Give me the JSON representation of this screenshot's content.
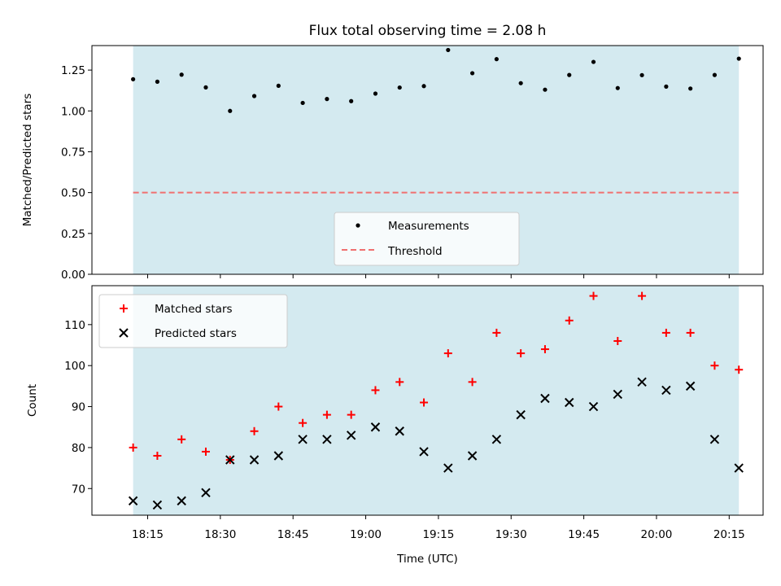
{
  "chart_data": [
    {
      "type": "scatter",
      "title": "Flux total observing time = 2.08 h",
      "ylabel": "Matched/Predicted stars",
      "ylim": [
        0.0,
        1.4
      ],
      "yticks": [
        "0.00",
        "0.25",
        "0.50",
        "0.75",
        "1.00",
        "1.25"
      ],
      "shaded_region": {
        "color": "#d4eaf0"
      },
      "x": [
        "18:12",
        "18:17",
        "18:22",
        "18:27",
        "18:32",
        "18:37",
        "18:42",
        "18:47",
        "18:52",
        "18:57",
        "19:02",
        "19:07",
        "19:12",
        "19:17",
        "19:22",
        "19:27",
        "19:32",
        "19:37",
        "19:42",
        "19:47",
        "19:52",
        "19:57",
        "20:02",
        "20:07",
        "20:12",
        "20:17"
      ],
      "series": [
        {
          "name": "Measurements",
          "marker": "dot",
          "color": "#000000",
          "values": [
            1.194,
            1.179,
            1.222,
            1.144,
            1.0,
            1.091,
            1.154,
            1.049,
            1.073,
            1.06,
            1.106,
            1.143,
            1.152,
            1.373,
            1.231,
            1.317,
            1.17,
            1.13,
            1.22,
            1.3,
            1.14,
            1.219,
            1.149,
            1.137,
            1.22,
            1.32
          ]
        }
      ],
      "threshold": {
        "name": "Threshold",
        "value": 0.5,
        "color": "#f07070"
      },
      "legend": "lower-center",
      "grid": false
    },
    {
      "type": "scatter",
      "xlabel": "Time (UTC)",
      "ylabel": "Count",
      "ylim": [
        63.5,
        119.5
      ],
      "yticks": [
        "70",
        "80",
        "90",
        "100",
        "110"
      ],
      "xticks": [
        "18:15",
        "18:30",
        "18:45",
        "19:00",
        "19:15",
        "19:30",
        "19:45",
        "20:00",
        "20:15"
      ],
      "shaded_region": {
        "color": "#d4eaf0"
      },
      "x": [
        "18:12",
        "18:17",
        "18:22",
        "18:27",
        "18:32",
        "18:37",
        "18:42",
        "18:47",
        "18:52",
        "18:57",
        "19:02",
        "19:07",
        "19:12",
        "19:17",
        "19:22",
        "19:27",
        "19:32",
        "19:37",
        "19:42",
        "19:47",
        "19:52",
        "19:57",
        "20:02",
        "20:07",
        "20:12",
        "20:17"
      ],
      "series": [
        {
          "name": "Matched stars",
          "marker": "plus",
          "color": "#ff0000",
          "values": [
            80,
            78,
            82,
            79,
            77,
            84,
            90,
            86,
            88,
            88,
            94,
            96,
            91,
            103,
            96,
            108,
            103,
            104,
            111,
            117,
            106,
            117,
            108,
            108,
            100,
            99
          ]
        },
        {
          "name": "Predicted stars",
          "marker": "x",
          "color": "#000000",
          "values": [
            67,
            66,
            67,
            69,
            77,
            77,
            78,
            82,
            82,
            83,
            85,
            84,
            79,
            75,
            78,
            82,
            88,
            92,
            91,
            90,
            93,
            96,
            94,
            95,
            82,
            75
          ]
        }
      ],
      "legend": "top-left",
      "grid": false
    }
  ]
}
